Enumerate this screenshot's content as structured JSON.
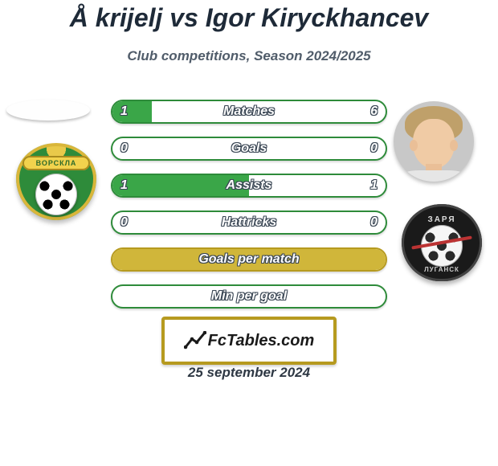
{
  "title": "Å krijelj vs Igor Kiryckhancev",
  "subtitle": "Club competitions, Season 2024/2025",
  "date": "25 september 2024",
  "brand_text": "FcTables.com",
  "left_crest_text": "ВОРСКЛА",
  "right_crest_top": "ЗАРЯ",
  "right_crest_bot": "ЛУГАНСК",
  "colors": {
    "row_green_border": "#2e8b3a",
    "row_green_fill": "#3aa648",
    "row_olive_border": "#b69a1f",
    "row_olive_fill": "#d0b63a",
    "brand_border": "#b69a1f"
  },
  "rows": [
    {
      "label": "Matches",
      "left": "1",
      "right": "6",
      "fill_pct": 14.3,
      "style": "green",
      "show_numbers": true
    },
    {
      "label": "Goals",
      "left": "0",
      "right": "0",
      "fill_pct": 0,
      "style": "green",
      "show_numbers": true
    },
    {
      "label": "Assists",
      "left": "1",
      "right": "1",
      "fill_pct": 50,
      "style": "green",
      "show_numbers": true
    },
    {
      "label": "Hattricks",
      "left": "0",
      "right": "0",
      "fill_pct": 0,
      "style": "green",
      "show_numbers": true
    },
    {
      "label": "Goals per match",
      "left": "",
      "right": "",
      "fill_pct": 100,
      "style": "olive",
      "show_numbers": false
    },
    {
      "label": "Min per goal",
      "left": "",
      "right": "",
      "fill_pct": 0,
      "style": "green",
      "show_numbers": false
    }
  ]
}
